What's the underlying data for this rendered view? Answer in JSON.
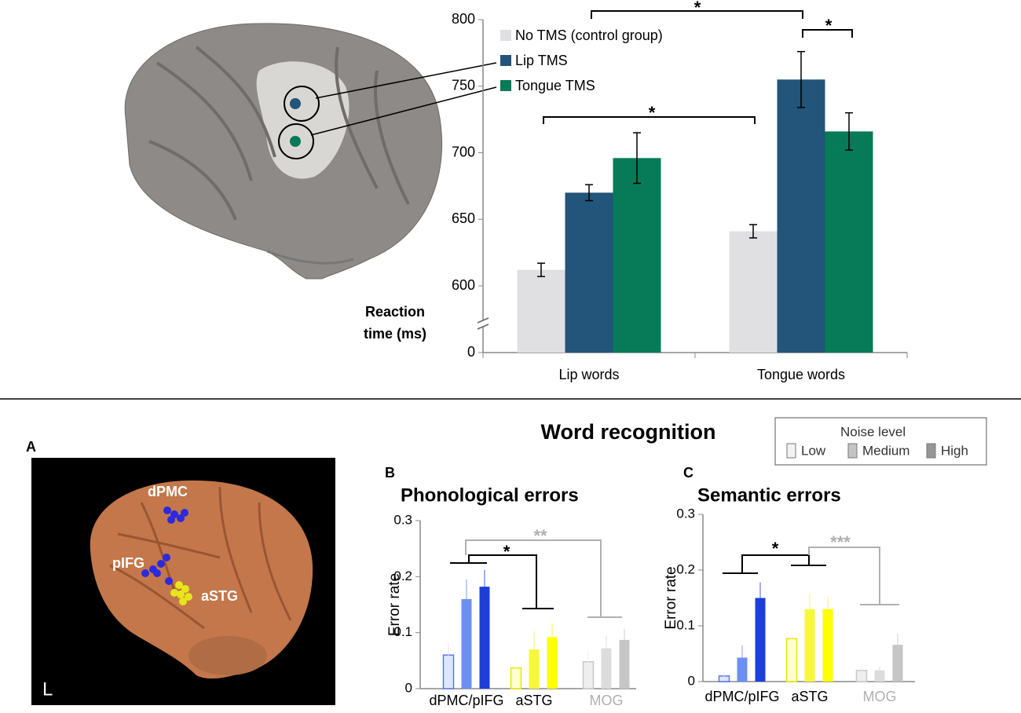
{
  "chart_data": [
    {
      "type": "bar",
      "categories": [
        "Lip words",
        "Tongue words"
      ],
      "series": [
        {
          "name": "No TMS (control group)",
          "color": "#e0dfe1",
          "values": [
            612,
            641
          ],
          "errors": [
            5,
            5
          ]
        },
        {
          "name": "Lip TMS",
          "color": "#235479",
          "values": [
            670,
            755
          ],
          "errors": [
            6,
            21
          ]
        },
        {
          "name": "Tongue TMS",
          "color": "#077a57",
          "values": [
            696,
            716
          ],
          "errors": [
            19,
            14
          ]
        }
      ],
      "ylim": [
        600,
        800
      ],
      "yticks": [
        0,
        600,
        650,
        700,
        750,
        800
      ],
      "axis_break": true,
      "ylabel": "Reaction time (ms)",
      "legend": "upper left",
      "error_color": "#000000",
      "annotations": [
        "*",
        "*",
        "*"
      ]
    },
    {
      "type": "bar",
      "panel": "B",
      "title": "Phonological errors",
      "categories": [
        "dPMC/pIFG",
        "aSTG",
        "MOG"
      ],
      "category_colors": [
        "#000000",
        "#000000",
        "#b0b0b0"
      ],
      "series": [
        {
          "name": "Low",
          "colors": [
            "#dfe5ff",
            "#ffffd0",
            "#eeeeee"
          ],
          "edge_colors": [
            "#5b78e6",
            "#e6e600",
            "#c8c8c8"
          ],
          "values": [
            0.06,
            0.037,
            0.048
          ],
          "errors": [
            0.022,
            0.016,
            0.02
          ]
        },
        {
          "name": "Medium",
          "colors": [
            "#6d8ff2",
            "#f7f73c",
            "#dcdcdc"
          ],
          "values": [
            0.16,
            0.07,
            0.072
          ],
          "errors": [
            0.035,
            0.033,
            0.022
          ]
        },
        {
          "name": "High",
          "colors": [
            "#1d3fd8",
            "#ffff00",
            "#c6c6c6"
          ],
          "values": [
            0.182,
            0.092,
            0.087
          ],
          "errors": [
            0.03,
            0.025,
            0.02
          ]
        }
      ],
      "ylim": [
        0,
        0.3
      ],
      "yticks": [
        0,
        0.1,
        0.2,
        0.3
      ],
      "ylabel": "Error rate",
      "annotations": [
        "*",
        "**"
      ]
    },
    {
      "type": "bar",
      "panel": "C",
      "title": "Semantic errors",
      "categories": [
        "dPMC/pIFG",
        "aSTG",
        "MOG"
      ],
      "category_colors": [
        "#000000",
        "#000000",
        "#b0b0b0"
      ],
      "series": [
        {
          "colors": [
            "#dfe5ff",
            "#ffffd0",
            "#eeeeee"
          ],
          "edge_colors": [
            "#5b78e6",
            "#e6e600",
            "#c8c8c8"
          ],
          "values": [
            0.01,
            0.077,
            0.02
          ],
          "errors": [
            0.008,
            0.018,
            0.007
          ]
        },
        {
          "colors": [
            "#6d8ff2",
            "#f7f73c",
            "#dcdcdc"
          ],
          "values": [
            0.043,
            0.13,
            0.02
          ],
          "errors": [
            0.022,
            0.028,
            0.007
          ]
        },
        {
          "colors": [
            "#1d3fd8",
            "#ffff00",
            "#c6c6c6"
          ],
          "values": [
            0.15,
            0.13,
            0.066
          ],
          "errors": [
            0.028,
            0.022,
            0.02
          ]
        }
      ],
      "ylim": [
        0,
        0.3
      ],
      "yticks": [
        0,
        0.1,
        0.2,
        0.3
      ],
      "ylabel": "Error rate",
      "annotations": [
        "*",
        "***"
      ]
    }
  ],
  "figure_title": "Word recognition",
  "noise_legend": {
    "title": "Noise level",
    "colors": [
      "#f2f2f2",
      "#c4c4c4",
      "#969696"
    ]
  },
  "panel_a": {
    "label": "A",
    "regions": [
      "dPMC",
      "pIFG",
      "aSTG"
    ],
    "hemisphere": "L"
  }
}
